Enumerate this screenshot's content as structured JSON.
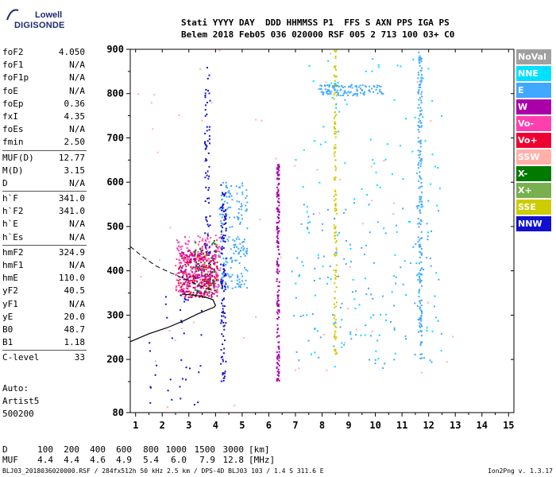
{
  "logo": {
    "top": "Lowell",
    "bottom": "DIGISONDE"
  },
  "header": {
    "line1": "Stati YYYY DAY  DDD HHMMSS P1  FFS S AXN PPS IGA PS",
    "line2": "Belem 2018 Feb05 036 020000 RSF 005 2 713 100 03+ C0"
  },
  "params": [
    {
      "k": "foF2",
      "v": "4.050"
    },
    {
      "k": "foF1",
      "v": "N/A"
    },
    {
      "k": "foF1p",
      "v": "N/A"
    },
    {
      "k": "foE",
      "v": "N/A"
    },
    {
      "k": "foEp",
      "v": "0.36"
    },
    {
      "k": "fxI",
      "v": "4.35"
    },
    {
      "k": "foEs",
      "v": "N/A"
    },
    {
      "k": "fmin",
      "v": "2.50"
    },
    {
      "k": "MUF(D)",
      "v": "12.77"
    },
    {
      "k": "M(D)",
      "v": "3.15"
    },
    {
      "k": "D",
      "v": "N/A"
    },
    {
      "k": "h`F",
      "v": "341.0"
    },
    {
      "k": "h`F2",
      "v": "341.0"
    },
    {
      "k": "h`E",
      "v": "N/A"
    },
    {
      "k": "h`Es",
      "v": "N/A"
    },
    {
      "k": "hmF2",
      "v": "324.9"
    },
    {
      "k": "hmF1",
      "v": "N/A"
    },
    {
      "k": "hmE",
      "v": "110.0"
    },
    {
      "k": "yF2",
      "v": "40.5"
    },
    {
      "k": "yF1",
      "v": "N/A"
    },
    {
      "k": "yE",
      "v": "20.0"
    },
    {
      "k": "B0",
      "v": "48.7"
    },
    {
      "k": "B1",
      "v": "1.18"
    },
    {
      "k": "C-level",
      "v": "33"
    }
  ],
  "auto": {
    "l1": "Auto:",
    "l2": "Artist5",
    "l3": "500200"
  },
  "table": {
    "d_label": "D",
    "d_values": [
      "100",
      "200",
      "400",
      "600",
      "800",
      "1000",
      "1500",
      "3000"
    ],
    "d_unit": "[km]",
    "muf_label": "MUF",
    "muf_values": [
      "4.4",
      "4.4",
      "4.6",
      "4.9",
      "5.4",
      "6.0",
      "7.9",
      "12.8"
    ],
    "muf_unit": "[MHz]"
  },
  "footer": {
    "left": "BLJ03_2018036020000.RSF / 284fx512h 50 kHz 2.5 km / DPS-4D BLJ03 103 / 1.4 S 311.6 E",
    "right": "Ion2Png v. 1.3.17"
  },
  "legend": [
    {
      "label": "NoVal",
      "color": "#a0a0a0"
    },
    {
      "label": "NNE",
      "color": "#00e0ff"
    },
    {
      "label": "E",
      "color": "#40a8ff"
    },
    {
      "label": "W",
      "color": "#aa00aa"
    },
    {
      "label": "Vo-",
      "color": "#ff3fae"
    },
    {
      "label": "Vo+",
      "color": "#ee0033"
    },
    {
      "label": "SSW",
      "color": "#ffb0a8"
    },
    {
      "label": "X-",
      "color": "#007a00"
    },
    {
      "label": "X+",
      "color": "#78b050"
    },
    {
      "label": "SSE",
      "color": "#cccc00"
    },
    {
      "label": "NNW",
      "color": "#1010d0"
    }
  ],
  "chart_data": {
    "type": "scatter",
    "xlim": [
      0.8,
      15.2
    ],
    "ylim": [
      80,
      900
    ],
    "xticks": [
      "1",
      "2",
      "3",
      "4",
      "5",
      "6",
      "7",
      "8",
      "9",
      "10",
      "11",
      "12",
      "13",
      "14",
      "15"
    ],
    "yticks": [
      "80",
      "200",
      "300",
      "400",
      "500",
      "600",
      "700",
      "800",
      "900"
    ],
    "profile": {
      "solid": [
        [
          0.8,
          240
        ],
        [
          1.5,
          258
        ],
        [
          2.2,
          272
        ],
        [
          2.8,
          287
        ],
        [
          3.3,
          302
        ],
        [
          3.7,
          312
        ],
        [
          3.95,
          318
        ],
        [
          4.0,
          322
        ],
        [
          3.9,
          335
        ],
        [
          3.6,
          341
        ],
        [
          3.2,
          345
        ],
        [
          2.8,
          347
        ]
      ],
      "dashed": [
        [
          0.8,
          455
        ],
        [
          1.3,
          430
        ],
        [
          1.8,
          410
        ],
        [
          2.3,
          396
        ],
        [
          2.8,
          383
        ],
        [
          3.2,
          372
        ],
        [
          3.6,
          362
        ],
        [
          3.95,
          356
        ]
      ]
    },
    "point_groups": [
      {
        "name": "Vo+",
        "color": "#ee0033",
        "x": [
          2.6,
          4.1
        ],
        "y": [
          340,
          440
        ],
        "n": 260
      },
      {
        "name": "Vo-",
        "color": "#ff3fae",
        "x": [
          2.5,
          4.2
        ],
        "y": [
          350,
          480
        ],
        "n": 220
      },
      {
        "name": "W",
        "color": "#aa00aa",
        "x": [
          2.7,
          4.0
        ],
        "y": [
          340,
          450
        ],
        "n": 120
      },
      {
        "name": "X-",
        "color": "#007a00",
        "x": [
          3.2,
          4.1
        ],
        "y": [
          350,
          470
        ],
        "n": 50
      },
      {
        "name": "E",
        "color": "#40a8ff",
        "x": [
          4.1,
          5.2
        ],
        "y": [
          360,
          600
        ],
        "n": 180
      },
      {
        "name": "NNW",
        "color": "#1010d0",
        "x": [
          4.2,
          4.4
        ],
        "y": [
          150,
          600
        ],
        "n": 120
      },
      {
        "name": "NNW",
        "color": "#1010d0",
        "x": [
          3.6,
          3.8
        ],
        "y": [
          400,
          860
        ],
        "n": 70
      },
      {
        "name": "W",
        "color": "#aa00aa",
        "x": [
          6.3,
          6.4
        ],
        "y": [
          150,
          640
        ],
        "n": 180
      },
      {
        "name": "E",
        "color": "#40a8ff",
        "x": [
          11.6,
          11.75
        ],
        "y": [
          200,
          900
        ],
        "n": 200
      },
      {
        "name": "SSE",
        "color": "#cccc00",
        "x": [
          8.45,
          8.55
        ],
        "y": [
          210,
          900
        ],
        "n": 140
      },
      {
        "name": "E",
        "color": "#40a8ff",
        "x": [
          7.8,
          10.3
        ],
        "y": [
          795,
          820
        ],
        "n": 110
      },
      {
        "name": "NNE",
        "color": "#00e0ff",
        "x": [
          7.0,
          12.5
        ],
        "y": [
          180,
          880
        ],
        "n": 120
      },
      {
        "name": "E",
        "color": "#40a8ff",
        "x": [
          6.8,
          12.5
        ],
        "y": [
          180,
          560
        ],
        "n": 120
      },
      {
        "name": "SSW",
        "color": "#ffb0a8",
        "x": [
          1.0,
          13.0
        ],
        "y": [
          90,
          900
        ],
        "n": 60
      },
      {
        "name": "NNW",
        "color": "#1010d0",
        "x": [
          1.5,
          3.5
        ],
        "y": [
          90,
          400
        ],
        "n": 40
      }
    ]
  }
}
